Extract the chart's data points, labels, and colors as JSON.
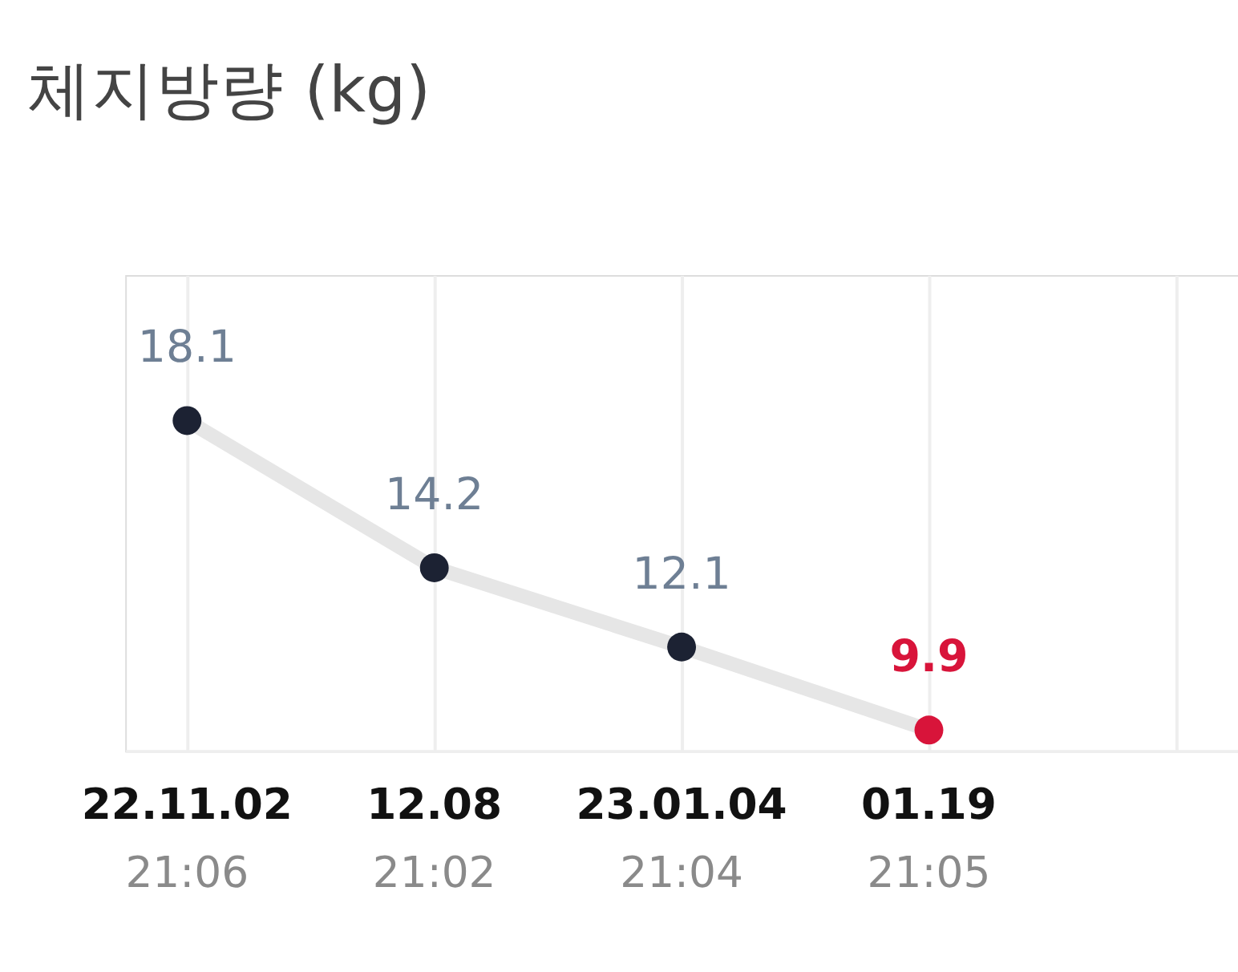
{
  "chart_data": {
    "type": "line",
    "title": "체지방량 (kg)",
    "categories": [
      "22.11.02\n21:06",
      "12.08\n21:02",
      "23.01.04\n21:04",
      "01.19\n21:05",
      null
    ],
    "series": [
      {
        "color": "#e6e6e6",
        "colors": [
          "#1c2233",
          "#1c2233",
          "#1c2233",
          "#d8143a",
          null
        ],
        "values": [
          18.1,
          14.2,
          12.1,
          9.9,
          null
        ]
      }
    ],
    "data_labels": true,
    "grid": "x",
    "marker": "circle",
    "tick_labels": "x"
  }
}
